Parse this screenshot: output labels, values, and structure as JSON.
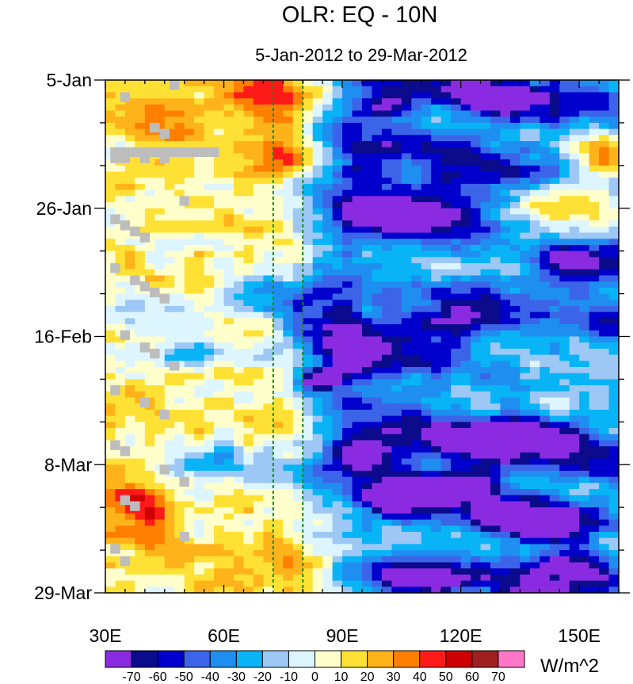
{
  "chart_data": {
    "type": "heatmap",
    "title": "OLR: EQ - 10N",
    "subtitle": "5-Jan-2012 to 29-Mar-2012",
    "x_range": [
      30,
      160
    ],
    "x_ticks": [
      {
        "value": 30,
        "label": "30E"
      },
      {
        "value": 60,
        "label": "60E"
      },
      {
        "value": 90,
        "label": "90E"
      },
      {
        "value": 120,
        "label": "120E"
      },
      {
        "value": 150,
        "label": "150E"
      }
    ],
    "y_range_days": [
      0,
      84
    ],
    "y_ticks": [
      {
        "day": 0,
        "label": "5-Jan"
      },
      {
        "day": 21,
        "label": "26-Jan"
      },
      {
        "day": 42,
        "label": "16-Feb"
      },
      {
        "day": 63,
        "label": "8-Mar"
      },
      {
        "day": 84,
        "label": "29-Mar"
      }
    ],
    "reference_lines_lon": [
      72.5,
      80
    ],
    "reference_line_color": "#1a8a1a",
    "missing_color": "#bdbdbd",
    "colorbar": {
      "unit_label": "W/m^2",
      "levels": [
        -70,
        -60,
        -50,
        -40,
        -30,
        -20,
        -10,
        0,
        10,
        20,
        30,
        40,
        50,
        60,
        70
      ],
      "level_labels": [
        "-70",
        "-60",
        "-50",
        "-40",
        "-30",
        "-20",
        "-10",
        "0",
        "10",
        "20",
        "30",
        "40",
        "50",
        "60",
        "70"
      ],
      "colors": [
        "#8a2be2",
        "#0b0b8c",
        "#0000cd",
        "#3b64e8",
        "#1e8ff0",
        "#08b4f5",
        "#9dc8f5",
        "#ddf5ff",
        "#ffffcc",
        "#ffe135",
        "#ffb31a",
        "#ff7f00",
        "#ff1a1a",
        "#cc0000",
        "#a02020",
        "#ff77c8"
      ]
    },
    "grid_resolution": {
      "lon_step": 2.5,
      "day_step": 1
    },
    "anomaly_features": [
      {
        "type": "band",
        "sign": "neg",
        "lon": [
          85,
          160
        ],
        "day": [
          0,
          84
        ],
        "amp": -38,
        "note": "broad suppressed-OLR region east of 85E"
      },
      {
        "type": "band",
        "sign": "pos",
        "lon": [
          30,
          75
        ],
        "day": [
          0,
          84
        ],
        "amp": 10,
        "note": "weak positive west of 75E"
      },
      {
        "type": "blob",
        "lon": 72,
        "day": 3,
        "rlon": 12,
        "rday": 5,
        "amp": 32
      },
      {
        "type": "blob",
        "lon": 75,
        "day": 13,
        "rlon": 10,
        "rday": 3,
        "amp": 22
      },
      {
        "type": "blob",
        "lon": 45,
        "day": 5,
        "rlon": 12,
        "rday": 6,
        "amp": 18
      },
      {
        "type": "blob",
        "lon": 155,
        "day": 13,
        "rlon": 10,
        "rday": 5,
        "amp": 48
      },
      {
        "type": "blob",
        "lon": 148,
        "day": 20,
        "rlon": 18,
        "rday": 5,
        "amp": 36
      },
      {
        "type": "blob",
        "lon": 140,
        "day": 26,
        "rlon": 14,
        "rday": 3,
        "amp": 28
      },
      {
        "type": "blob",
        "lon": 102,
        "day": 32,
        "rlon": 22,
        "rday": 3,
        "amp": 26
      },
      {
        "type": "blob",
        "lon": 128,
        "day": 47,
        "rlon": 14,
        "rday": 3,
        "amp": 25
      },
      {
        "type": "blob",
        "lon": 150,
        "day": 51,
        "rlon": 12,
        "rday": 4,
        "amp": 42
      },
      {
        "type": "blob",
        "lon": 37,
        "day": 70,
        "rlon": 9,
        "rday": 5,
        "amp": 42
      },
      {
        "type": "blob",
        "lon": 92,
        "day": 77,
        "rlon": 14,
        "rday": 3,
        "amp": 38
      },
      {
        "type": "blob",
        "lon": 62,
        "day": 80,
        "rlon": 15,
        "rday": 5,
        "amp": 12
      },
      {
        "type": "blob",
        "lon": 158,
        "day": 76,
        "rlon": 6,
        "rday": 3,
        "amp": 40
      },
      {
        "type": "blob",
        "lon": 102,
        "day": 4,
        "rlon": 8,
        "rday": 3,
        "amp": -45
      },
      {
        "type": "blob",
        "lon": 130,
        "day": 3,
        "rlon": 14,
        "rday": 3,
        "amp": -45
      },
      {
        "type": "blob",
        "lon": 95,
        "day": 14,
        "rlon": 8,
        "rday": 3,
        "amp": -35
      },
      {
        "type": "blob",
        "lon": 118,
        "day": 18,
        "rlon": 14,
        "rday": 4,
        "amp": -42
      },
      {
        "type": "blob",
        "lon": 100,
        "day": 23,
        "rlon": 14,
        "rday": 4,
        "amp": -45
      },
      {
        "type": "blob",
        "lon": 148,
        "day": 30,
        "rlon": 12,
        "rday": 3,
        "amp": -45
      },
      {
        "type": "blob",
        "lon": 78,
        "day": 35,
        "rlon": 16,
        "rday": 3,
        "amp": -58
      },
      {
        "type": "blob",
        "lon": 85,
        "day": 40,
        "rlon": 12,
        "rday": 3,
        "amp": -40
      },
      {
        "type": "blob",
        "lon": 118,
        "day": 40,
        "rlon": 12,
        "rday": 3,
        "amp": -48
      },
      {
        "type": "blob",
        "lon": 92,
        "day": 46,
        "rlon": 10,
        "rday": 4,
        "amp": -48
      },
      {
        "type": "blob",
        "lon": 84,
        "day": 49,
        "rlon": 6,
        "rday": 2,
        "amp": -70
      },
      {
        "type": "blob",
        "lon": 56,
        "day": 45,
        "rlon": 18,
        "rday": 2,
        "amp": -32
      },
      {
        "type": "blob",
        "lon": 95,
        "day": 61,
        "rlon": 10,
        "rday": 3,
        "amp": -65
      },
      {
        "type": "blob",
        "lon": 125,
        "day": 59,
        "rlon": 14,
        "rday": 3,
        "amp": -62
      },
      {
        "type": "blob",
        "lon": 143,
        "day": 58,
        "rlon": 12,
        "rday": 3,
        "amp": -52
      },
      {
        "type": "blob",
        "lon": 120,
        "day": 66,
        "rlon": 12,
        "rday": 3,
        "amp": -55
      },
      {
        "type": "blob",
        "lon": 103,
        "day": 69,
        "rlon": 8,
        "rday": 3,
        "amp": -55
      },
      {
        "type": "blob",
        "lon": 138,
        "day": 72,
        "rlon": 14,
        "rday": 3,
        "amp": -60
      },
      {
        "type": "blob",
        "lon": 148,
        "day": 80,
        "rlon": 12,
        "rday": 3,
        "amp": -60
      },
      {
        "type": "blob",
        "lon": 108,
        "day": 82,
        "rlon": 12,
        "rday": 3,
        "amp": -50
      },
      {
        "type": "blob",
        "lon": 60,
        "day": 63,
        "rlon": 22,
        "rday": 4,
        "amp": -30
      },
      {
        "type": "blob",
        "lon": 45,
        "day": 40,
        "rlon": 12,
        "rday": 4,
        "amp": -22
      }
    ],
    "missing_cells": [
      {
        "lon": 35,
        "day": 2
      },
      {
        "lon": 47.5,
        "day": 0
      },
      {
        "lon": 42.5,
        "day": 7
      },
      {
        "lon": 45,
        "day": 8
      },
      {
        "lon": 32.5,
        "day": 11
      },
      {
        "lon": 35,
        "day": 11
      },
      {
        "lon": 37.5,
        "day": 11
      },
      {
        "lon": 40,
        "day": 11
      },
      {
        "lon": 42.5,
        "day": 11
      },
      {
        "lon": 45,
        "day": 11
      },
      {
        "lon": 47.5,
        "day": 11
      },
      {
        "lon": 50,
        "day": 11
      },
      {
        "lon": 52.5,
        "day": 11
      },
      {
        "lon": 55,
        "day": 11
      },
      {
        "lon": 57.5,
        "day": 11
      },
      {
        "lon": 32.5,
        "day": 12
      },
      {
        "lon": 35,
        "day": 12
      },
      {
        "lon": 40,
        "day": 12
      },
      {
        "lon": 45,
        "day": 12
      },
      {
        "lon": 50,
        "day": 19
      },
      {
        "lon": 32.5,
        "day": 22
      },
      {
        "lon": 35,
        "day": 23
      },
      {
        "lon": 37.5,
        "day": 24
      },
      {
        "lon": 40,
        "day": 25
      },
      {
        "lon": 32.5,
        "day": 30
      },
      {
        "lon": 37.5,
        "day": 32
      },
      {
        "lon": 40,
        "day": 33
      },
      {
        "lon": 42.5,
        "day": 34
      },
      {
        "lon": 45,
        "day": 35
      },
      {
        "lon": 35,
        "day": 41
      },
      {
        "lon": 40,
        "day": 43
      },
      {
        "lon": 42.5,
        "day": 44
      },
      {
        "lon": 47.5,
        "day": 46
      },
      {
        "lon": 32.5,
        "day": 50
      },
      {
        "lon": 40,
        "day": 52
      },
      {
        "lon": 45,
        "day": 54
      },
      {
        "lon": 32.5,
        "day": 59
      },
      {
        "lon": 35,
        "day": 60
      },
      {
        "lon": 45,
        "day": 63
      },
      {
        "lon": 50,
        "day": 65
      },
      {
        "lon": 35,
        "day": 68
      },
      {
        "lon": 37.5,
        "day": 69
      },
      {
        "lon": 50,
        "day": 74
      },
      {
        "lon": 32.5,
        "day": 76
      },
      {
        "lon": 35,
        "day": 78
      }
    ]
  }
}
